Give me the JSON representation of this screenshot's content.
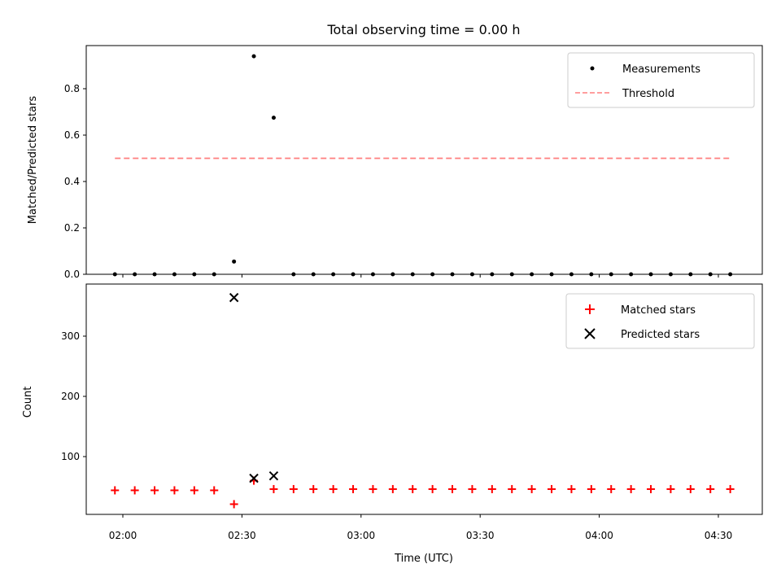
{
  "chart_data": [
    {
      "type": "scatter",
      "title": "Total observing time = 0.00 h",
      "xlabel": "",
      "ylabel": "Matched/Predicted stars",
      "ylim": [
        0,
        0.98
      ],
      "yticks": [
        "0.0",
        "0.2",
        "0.4",
        "0.6",
        "0.8"
      ],
      "x": [
        "01:58",
        "02:03",
        "02:08",
        "02:13",
        "02:18",
        "02:23",
        "02:28",
        "02:33",
        "02:38",
        "02:43",
        "02:48",
        "02:53",
        "02:58",
        "03:03",
        "03:08",
        "03:13",
        "03:18",
        "03:23",
        "03:28",
        "03:33",
        "03:38",
        "03:43",
        "03:48",
        "03:53",
        "03:58",
        "04:03",
        "04:08",
        "04:13",
        "04:18",
        "04:23",
        "04:28",
        "04:33"
      ],
      "series": [
        {
          "name": "Measurements",
          "color": "#000000",
          "values": [
            0,
            0,
            0,
            0,
            0,
            0,
            0.055,
            0.94,
            0.675,
            0,
            0,
            0,
            0,
            0,
            0,
            0,
            0,
            0,
            0,
            0,
            0,
            0,
            0,
            0,
            0,
            0,
            0,
            0,
            0,
            0,
            0,
            0
          ]
        },
        {
          "name": "Threshold",
          "color": "#ff7f7f",
          "style": "dashed",
          "value": 0.5
        }
      ],
      "legend": "top-right"
    },
    {
      "type": "scatter",
      "title": "",
      "xlabel": "Time (UTC)",
      "ylabel": "Count",
      "ylim": [
        5,
        380
      ],
      "yticks": [
        "100",
        "200",
        "300"
      ],
      "xticks": [
        "02:00",
        "02:30",
        "03:00",
        "03:30",
        "04:00",
        "04:30"
      ],
      "x": [
        "01:58",
        "02:03",
        "02:08",
        "02:13",
        "02:18",
        "02:23",
        "02:28",
        "02:33",
        "02:38",
        "02:43",
        "02:48",
        "02:53",
        "02:58",
        "03:03",
        "03:08",
        "03:13",
        "03:18",
        "03:23",
        "03:28",
        "03:33",
        "03:38",
        "03:43",
        "03:48",
        "03:53",
        "03:58",
        "04:03",
        "04:08",
        "04:13",
        "04:18",
        "04:23",
        "04:28",
        "04:33"
      ],
      "series": [
        {
          "name": "Matched stars",
          "color": "#ff0000",
          "marker": "plus",
          "values": [
            44,
            44,
            44,
            44,
            44,
            44,
            21,
            60,
            46,
            46,
            46,
            46,
            46,
            46,
            46,
            46,
            46,
            46,
            46,
            46,
            46,
            46,
            46,
            46,
            46,
            46,
            46,
            46,
            46,
            46,
            46,
            46
          ]
        },
        {
          "name": "Predicted stars",
          "color": "#000000",
          "marker": "x",
          "values": [
            null,
            null,
            null,
            null,
            null,
            null,
            364,
            64,
            68,
            null,
            null,
            null,
            null,
            null,
            null,
            null,
            null,
            null,
            null,
            null,
            null,
            null,
            null,
            null,
            null,
            null,
            null,
            null,
            null,
            null,
            null,
            null
          ]
        }
      ],
      "legend": "top-right"
    }
  ]
}
